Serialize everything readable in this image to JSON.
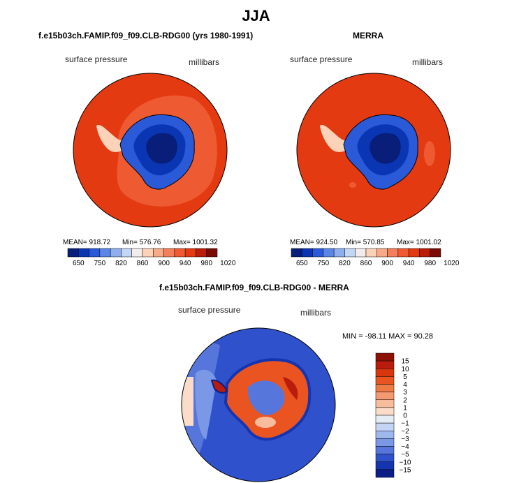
{
  "title": "JJA",
  "panels": {
    "left": {
      "title": "f.e15b03ch.FAMIP.f09_f09.CLB-RDG00 (yrs 1980-1991)",
      "variable": "surface pressure",
      "units": "millibars",
      "mean_text": "MEAN= 918.72",
      "min_text": "Min= 576.76",
      "max_text": "Max= 1001.32"
    },
    "right": {
      "title": "MERRA",
      "variable": "surface pressure",
      "units": "millibars",
      "mean_text": "MEAN= 924.50",
      "min_text": "Min= 570.85",
      "max_text": "Max= 1001.02"
    },
    "diff": {
      "title": "f.e15b03ch.FAMIP.f09_f09.CLB-RDG00 - MERRA",
      "variable": "surface pressure",
      "units": "millibars",
      "minmax_text": "MIN = -98.11  MAX =  90.28"
    }
  },
  "chart_data": [
    {
      "type": "heatmap",
      "projection": "south-polar-stereographic",
      "title": "f.e15b03ch.FAMIP.f09_f09.CLB-RDG00 (yrs 1980-1991)",
      "field": "surface pressure",
      "units": "millibars",
      "mean": 918.72,
      "min": 576.76,
      "max": 1001.32,
      "colorbar": {
        "orientation": "horizontal",
        "levels": [
          650,
          750,
          820,
          860,
          900,
          940,
          980,
          1020
        ],
        "colors": [
          "#081e78",
          "#0a36b4",
          "#2a5ad8",
          "#5a86e6",
          "#8eaeee",
          "#c2d6f6",
          "#f4ecec",
          "#fcd3b8",
          "#f8aa86",
          "#f47f5a",
          "#ee5a32",
          "#e43a12",
          "#bb1d08",
          "#7a0a05"
        ]
      }
    },
    {
      "type": "heatmap",
      "projection": "south-polar-stereographic",
      "title": "MERRA",
      "field": "surface pressure",
      "units": "millibars",
      "mean": 924.5,
      "min": 570.85,
      "max": 1001.02,
      "colorbar": {
        "orientation": "horizontal",
        "levels": [
          650,
          750,
          820,
          860,
          900,
          940,
          980,
          1020
        ],
        "colors": [
          "#081e78",
          "#0a36b4",
          "#2a5ad8",
          "#5a86e6",
          "#8eaeee",
          "#c2d6f6",
          "#f4ecec",
          "#fcd3b8",
          "#f8aa86",
          "#f47f5a",
          "#ee5a32",
          "#e43a12",
          "#bb1d08",
          "#7a0a05"
        ]
      }
    },
    {
      "type": "heatmap",
      "projection": "south-polar-stereographic",
      "title": "f.e15b03ch.FAMIP.f09_f09.CLB-RDG00 - MERRA",
      "field": "surface pressure",
      "units": "millibars",
      "min": -98.11,
      "max": 90.28,
      "colorbar": {
        "orientation": "vertical",
        "levels": [
          15,
          10,
          5,
          4,
          3,
          2,
          1,
          0,
          -1,
          -2,
          -3,
          -4,
          -5,
          -10,
          -15
        ],
        "level_labels": [
          "15",
          "10",
          "5",
          "4",
          "3",
          "2",
          "1",
          "0",
          "−1",
          "−2",
          "−3",
          "−4",
          "−5",
          "−10",
          "−15"
        ],
        "colors": [
          "#8c1106",
          "#b91c0c",
          "#d9360e",
          "#e95420",
          "#f07a45",
          "#f49a70",
          "#f7bc9c",
          "#fbdcc9",
          "#e6ecf6",
          "#c4d4f4",
          "#9eb8ee",
          "#7a98e6",
          "#5676dc",
          "#2f52cc",
          "#1434b0",
          "#0a1e86"
        ]
      }
    }
  ]
}
